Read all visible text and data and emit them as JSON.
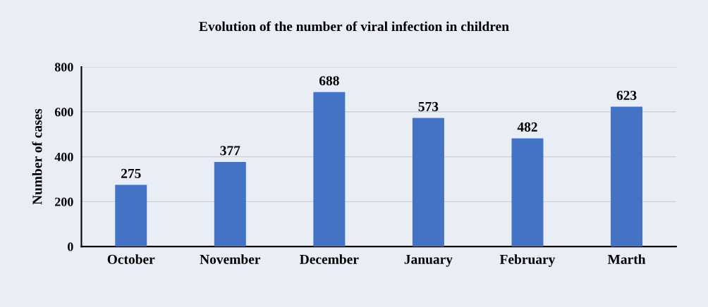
{
  "chart_data": {
    "type": "bar",
    "title": "Evolution of the number of viral infection in children",
    "ylabel": "Number of cases",
    "categories": [
      "October",
      "November",
      "December",
      "January",
      "February",
      "Marth"
    ],
    "values": [
      275,
      377,
      688,
      573,
      482,
      623
    ],
    "color": "#4472c4",
    "ylim": [
      0,
      800
    ],
    "yticks": [
      0,
      200,
      400,
      600,
      800
    ],
    "grid": "y",
    "data_labels": true
  }
}
